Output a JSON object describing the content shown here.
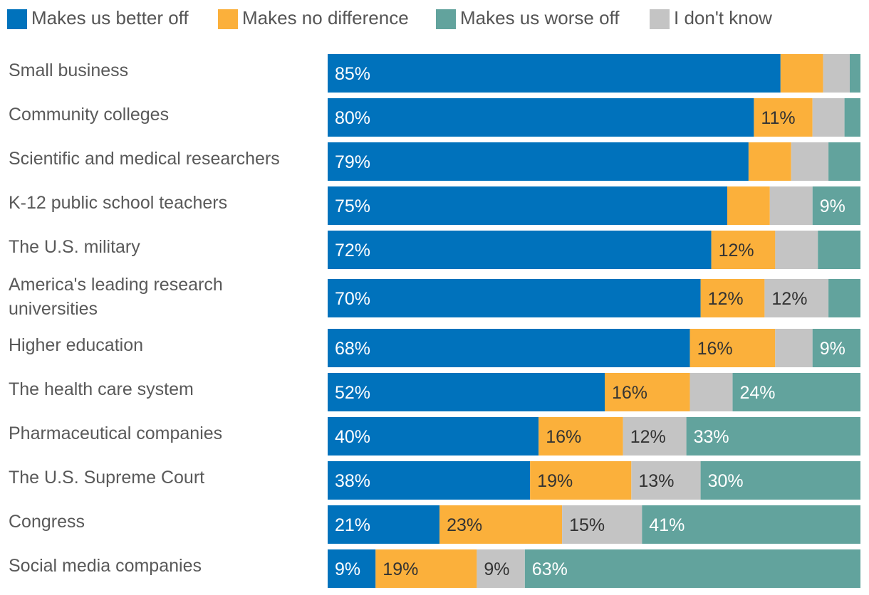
{
  "chart_data": {
    "type": "bar",
    "orientation": "horizontal",
    "stacked": true,
    "xlim": [
      0,
      100
    ],
    "legend_position": "top",
    "categories": [
      "Small business",
      "Community colleges",
      "Scientific and medical researchers",
      "K-12 public school teachers",
      "The U.S. military",
      "America's leading research universities",
      "Higher education",
      "The health care system",
      "Pharmaceutical companies",
      "The U.S. Supreme Court",
      "Congress",
      "Social media companies"
    ],
    "series": [
      {
        "name": "Makes us better off",
        "color": "#0072BC",
        "label_color": "#ffffff",
        "values": [
          85,
          80,
          79,
          75,
          72,
          70,
          68,
          52,
          40,
          38,
          21,
          9
        ],
        "labels": [
          "85%",
          "80%",
          "79%",
          "75%",
          "72%",
          "70%",
          "68%",
          "52%",
          "40%",
          "38%",
          "21%",
          "9%"
        ]
      },
      {
        "name": "Makes no difference",
        "color": "#FBB03B",
        "label_color": "#333333",
        "values": [
          8,
          11,
          8,
          8,
          12,
          12,
          16,
          16,
          16,
          19,
          23,
          19
        ],
        "labels": [
          "",
          "11%",
          "",
          "",
          "12%",
          "12%",
          "16%",
          "16%",
          "16%",
          "19%",
          "23%",
          "19%"
        ]
      },
      {
        "name": "I don't know",
        "color": "#C4C4C4",
        "label_color": "#333333",
        "values": [
          5,
          6,
          7,
          8,
          8,
          12,
          7,
          8,
          12,
          13,
          15,
          9
        ],
        "labels": [
          "",
          "",
          "",
          "",
          "",
          "12%",
          "",
          "",
          "12%",
          "13%",
          "15%",
          "9%"
        ]
      },
      {
        "name": "Makes us worse off",
        "color": "#62A39D",
        "label_color": "#ffffff",
        "values": [
          2,
          3,
          6,
          9,
          8,
          6,
          9,
          24,
          33,
          30,
          41,
          63
        ],
        "labels": [
          "",
          "",
          "",
          "9%",
          "",
          "",
          "9%",
          "24%",
          "33%",
          "30%",
          "41%",
          "63%"
        ]
      }
    ],
    "legend_order": [
      "Makes us better off",
      "Makes no difference",
      "Makes us worse off",
      "I don't know"
    ],
    "title": "",
    "xlabel": "",
    "ylabel": ""
  }
}
